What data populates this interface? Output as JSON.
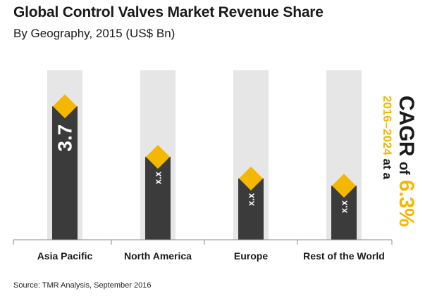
{
  "header": {
    "title": "Global Control Valves Market Revenue Share",
    "subtitle": "By Geography, 2015 (US$ Bn)"
  },
  "callout": {
    "cagr_word": "CAGR",
    "of_word": "of",
    "rate": "6.3%",
    "period": "2016–2024",
    "at_a": "at a"
  },
  "footer": {
    "source": "Source: TMR Analysis, September 2016"
  },
  "colors": {
    "bar": "#3b3b3b",
    "background_column": "#e6e6e6",
    "marker": "#f5b800",
    "axis": "#8a8a8a"
  },
  "chart_data": {
    "type": "bar",
    "title": "Global Control Valves Market Revenue Share",
    "subtitle": "By Geography, 2015 (US$ Bn)",
    "categories": [
      "Asia Pacific",
      "North America",
      "Europe",
      "Rest of the World"
    ],
    "values": [
      3.7,
      2.3,
      1.7,
      1.5
    ],
    "value_labels": [
      "3.7",
      "x.x",
      "x.x",
      "x.x"
    ],
    "ylim": [
      0,
      4.7
    ],
    "grid": false,
    "legend": "none"
  }
}
